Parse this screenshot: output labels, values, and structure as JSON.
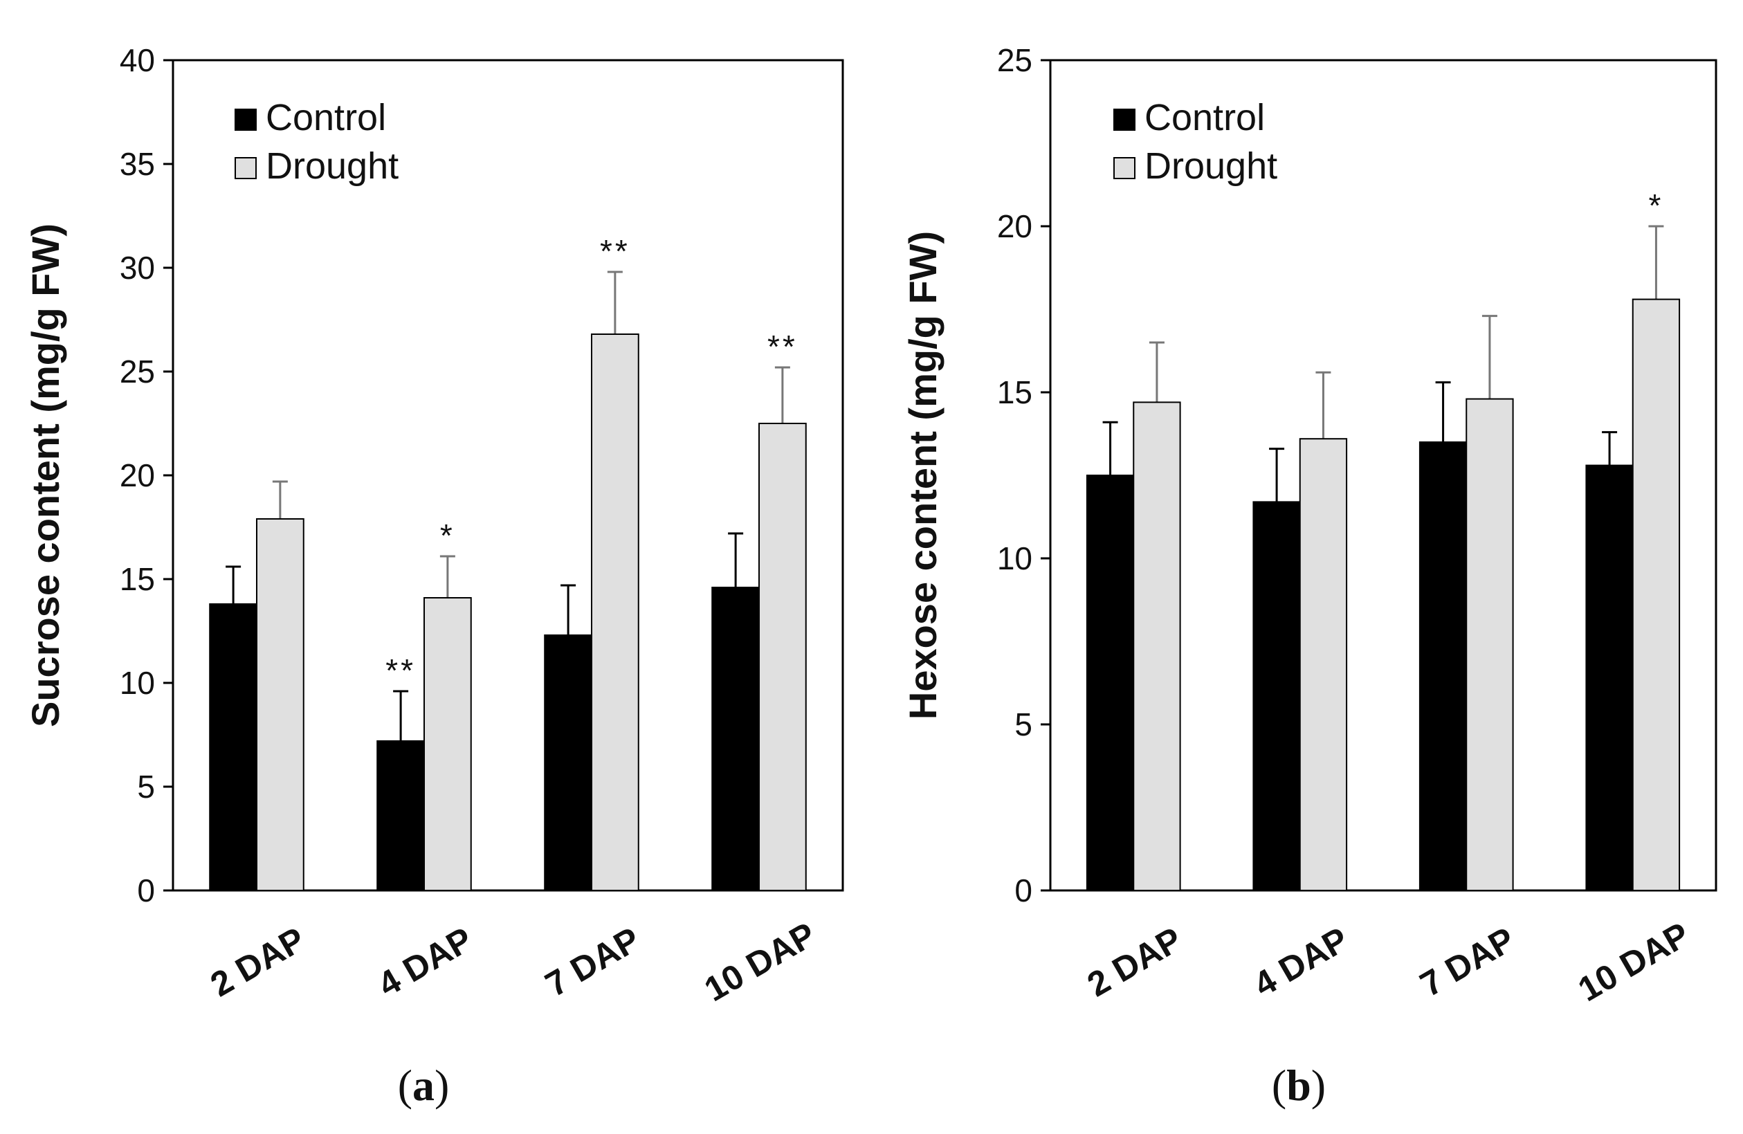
{
  "chart_data": [
    {
      "type": "bar",
      "panel_label": "a",
      "title": "",
      "xlabel": "",
      "ylabel": "Sucrose content (mg/g FW)",
      "ylim": [
        0,
        40
      ],
      "yticks": [
        "0",
        "5",
        "10",
        "15",
        "20",
        "25",
        "30",
        "35",
        "40"
      ],
      "categories": [
        "2 DAP",
        "4 DAP",
        "7 DAP",
        "10 DAP"
      ],
      "legend_position": "top-left",
      "series": [
        {
          "name": "Control",
          "color": "#000000",
          "values": [
            13.8,
            7.2,
            12.3,
            14.6
          ],
          "errors": [
            1.8,
            2.4,
            2.4,
            2.6
          ],
          "significance": [
            "",
            "**",
            "",
            ""
          ]
        },
        {
          "name": "Drought",
          "color": "#e0e0e0",
          "values": [
            17.9,
            14.1,
            26.8,
            22.5
          ],
          "errors": [
            1.8,
            2.0,
            3.0,
            2.7
          ],
          "significance": [
            "",
            "*",
            "**",
            "**"
          ]
        }
      ]
    },
    {
      "type": "bar",
      "panel_label": "b",
      "title": "",
      "xlabel": "",
      "ylabel": "Hexose content (mg/g FW)",
      "ylim": [
        0,
        25
      ],
      "yticks": [
        "0",
        "5",
        "10",
        "15",
        "20",
        "25"
      ],
      "categories": [
        "2 DAP",
        "4 DAP",
        "7 DAP",
        "10 DAP"
      ],
      "legend_position": "top-left",
      "series": [
        {
          "name": "Control",
          "color": "#000000",
          "values": [
            12.5,
            11.7,
            13.5,
            12.8
          ],
          "errors": [
            1.6,
            1.6,
            1.8,
            1.0
          ],
          "significance": [
            "",
            "",
            "",
            ""
          ]
        },
        {
          "name": "Drought",
          "color": "#e0e0e0",
          "values": [
            14.7,
            13.6,
            14.8,
            17.8
          ],
          "errors": [
            1.8,
            2.0,
            2.5,
            2.2
          ],
          "significance": [
            "",
            "",
            "",
            "*"
          ]
        }
      ]
    }
  ]
}
